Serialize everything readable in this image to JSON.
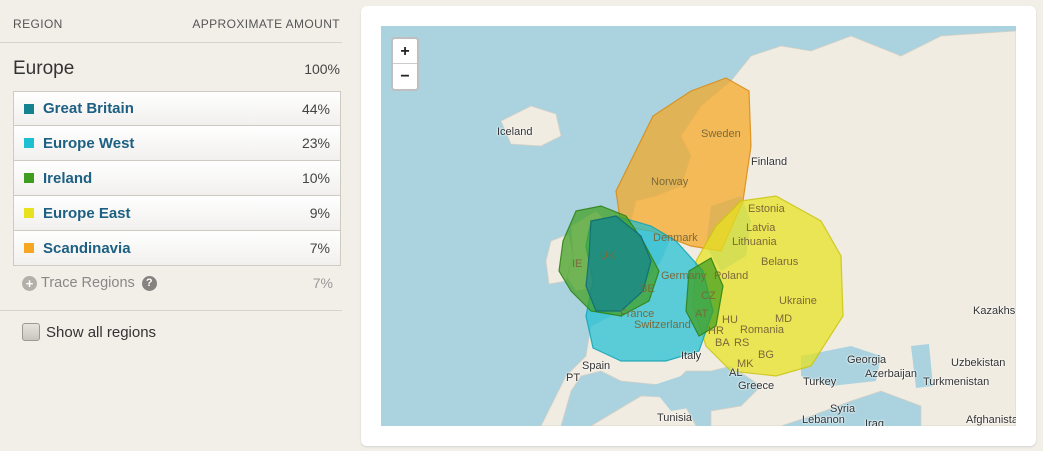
{
  "header": {
    "region_label": "REGION",
    "amount_label": "APPROXIMATE AMOUNT"
  },
  "europe": {
    "name": "Europe",
    "percent": "100%"
  },
  "regions": [
    {
      "name": "Great Britain",
      "percent": "44%",
      "color": "#15838f"
    },
    {
      "name": "Europe West",
      "percent": "23%",
      "color": "#1fbfd3"
    },
    {
      "name": "Ireland",
      "percent": "10%",
      "color": "#3f9e1f"
    },
    {
      "name": "Europe East",
      "percent": "9%",
      "color": "#e8e21e"
    },
    {
      "name": "Scandinavia",
      "percent": "7%",
      "color": "#f6a623"
    }
  ],
  "trace": {
    "label": "Trace Regions",
    "percent": "7%",
    "help_icon": "?"
  },
  "show_all": {
    "label": "Show all regions"
  },
  "zoom": {
    "in": "+",
    "out": "−"
  },
  "map_labels": {
    "iceland": "Iceland",
    "sweden": "Sweden",
    "finland": "Finland",
    "norway": "Norway",
    "estonia": "Estonia",
    "latvia": "Latvia",
    "lithuania": "Lithuania",
    "denmark": "Denmark",
    "belarus": "Belarus",
    "ie": "IE",
    "uk": "UK",
    "germany": "Germany",
    "poland": "Poland",
    "be": "BE",
    "cz": "CZ",
    "ukraine": "Ukraine",
    "kazakhs": "Kazakhs",
    "at": "AT",
    "france": "France",
    "hu": "HU",
    "md": "MD",
    "switzerland": "Switzerland",
    "hr": "HR",
    "romania": "Romania",
    "ba": "BA",
    "rs": "RS",
    "bg": "BG",
    "mk": "MK",
    "italy": "Italy",
    "georgia": "Georgia",
    "uzbekistan": "Uzbekistan",
    "azerbaijan": "Azerbaijan",
    "spain": "Spain",
    "al": "AL",
    "turkey": "Turkey",
    "turkmenistan": "Turkmenistan",
    "pt": "PT",
    "greece": "Greece",
    "syria": "Syria",
    "tunisia": "Tunisia",
    "lebanon": "Lebanon",
    "iraq": "Iraq",
    "afghanista": "Afghanista"
  }
}
